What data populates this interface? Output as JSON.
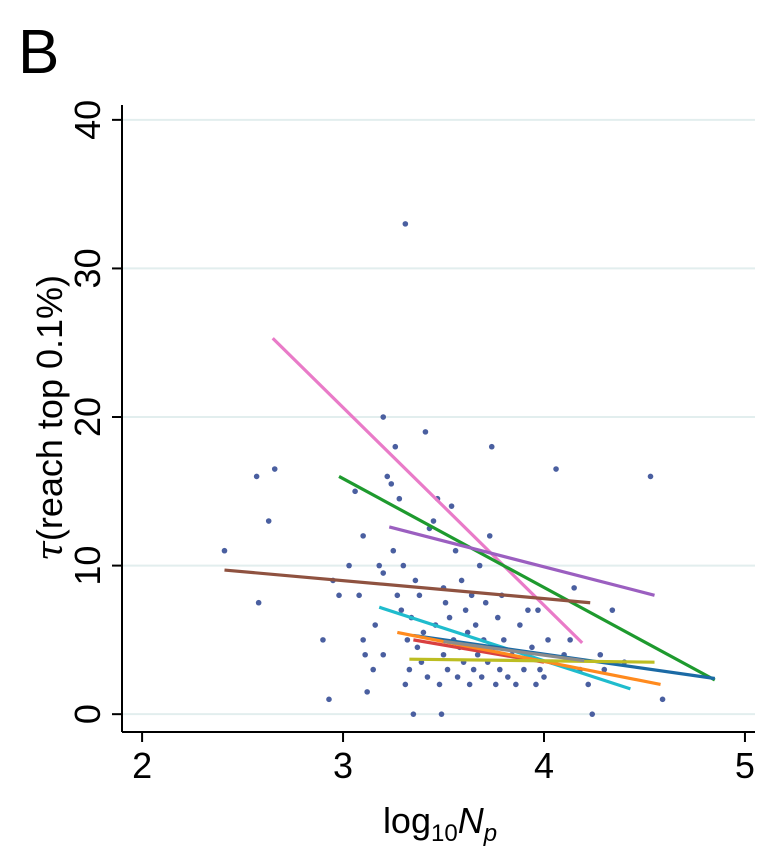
{
  "panel_label": "B",
  "chart_data": {
    "type": "scatter",
    "title": "",
    "xlabel": {
      "main": "log",
      "sub": "10",
      "var": "N",
      "var_sub": "p"
    },
    "ylabel": {
      "greek": "τ",
      "text": "(reach top 0.1%)"
    },
    "xlim": [
      1.9,
      5.05
    ],
    "ylim": [
      -1.2,
      41
    ],
    "xticks": [
      2,
      3,
      4,
      5
    ],
    "yticks": [
      0,
      10,
      20,
      30,
      40
    ],
    "grid": "horizontal",
    "colors": {
      "points": "#4a5fa0",
      "grid": "#e2eeee",
      "axis": "#000000"
    },
    "points": [
      [
        2.41,
        11
      ],
      [
        2.57,
        16
      ],
      [
        2.58,
        7.5
      ],
      [
        2.63,
        13
      ],
      [
        2.66,
        16.5
      ],
      [
        2.9,
        5
      ],
      [
        2.93,
        1
      ],
      [
        2.95,
        9
      ],
      [
        2.98,
        8
      ],
      [
        3.03,
        10
      ],
      [
        3.06,
        15
      ],
      [
        3.08,
        8
      ],
      [
        3.1,
        12
      ],
      [
        3.1,
        5
      ],
      [
        3.11,
        4
      ],
      [
        3.12,
        1.5
      ],
      [
        3.15,
        3
      ],
      [
        3.16,
        6
      ],
      [
        3.18,
        10
      ],
      [
        3.2,
        9.5
      ],
      [
        3.2,
        4
      ],
      [
        3.2,
        20
      ],
      [
        3.22,
        16
      ],
      [
        3.24,
        15.5
      ],
      [
        3.25,
        11
      ],
      [
        3.26,
        18
      ],
      [
        3.27,
        8
      ],
      [
        3.28,
        14.5
      ],
      [
        3.29,
        7
      ],
      [
        3.3,
        10
      ],
      [
        3.31,
        33
      ],
      [
        3.31,
        2
      ],
      [
        3.32,
        5
      ],
      [
        3.33,
        3
      ],
      [
        3.34,
        6.5
      ],
      [
        3.35,
        0
      ],
      [
        3.36,
        9
      ],
      [
        3.37,
        4.5
      ],
      [
        3.38,
        8
      ],
      [
        3.39,
        3.5
      ],
      [
        3.4,
        5.5
      ],
      [
        3.41,
        19
      ],
      [
        3.42,
        2.5
      ],
      [
        3.43,
        12.5
      ],
      [
        3.45,
        13
      ],
      [
        3.46,
        6
      ],
      [
        3.47,
        14.5
      ],
      [
        3.48,
        2
      ],
      [
        3.49,
        0
      ],
      [
        3.5,
        4
      ],
      [
        3.5,
        8.5
      ],
      [
        3.51,
        7.5
      ],
      [
        3.52,
        3
      ],
      [
        3.53,
        6.5
      ],
      [
        3.54,
        14
      ],
      [
        3.55,
        5
      ],
      [
        3.56,
        11
      ],
      [
        3.57,
        2.5
      ],
      [
        3.58,
        4.5
      ],
      [
        3.59,
        9
      ],
      [
        3.6,
        3.5
      ],
      [
        3.61,
        7
      ],
      [
        3.62,
        5.5
      ],
      [
        3.63,
        2
      ],
      [
        3.64,
        8
      ],
      [
        3.65,
        3
      ],
      [
        3.66,
        6
      ],
      [
        3.67,
        4
      ],
      [
        3.68,
        10
      ],
      [
        3.69,
        2.5
      ],
      [
        3.7,
        5
      ],
      [
        3.71,
        7.5
      ],
      [
        3.72,
        3.5
      ],
      [
        3.73,
        12
      ],
      [
        3.74,
        18
      ],
      [
        3.75,
        4.5
      ],
      [
        3.76,
        2
      ],
      [
        3.77,
        6.5
      ],
      [
        3.78,
        3
      ],
      [
        3.79,
        8
      ],
      [
        3.8,
        5
      ],
      [
        3.82,
        2.5
      ],
      [
        3.84,
        4
      ],
      [
        3.86,
        2
      ],
      [
        3.88,
        6
      ],
      [
        3.9,
        3
      ],
      [
        3.92,
        7
      ],
      [
        3.94,
        4.5
      ],
      [
        3.96,
        2
      ],
      [
        3.97,
        7
      ],
      [
        3.98,
        3
      ],
      [
        4.0,
        2.5
      ],
      [
        4.02,
        5
      ],
      [
        4.04,
        3.5
      ],
      [
        4.06,
        16.5
      ],
      [
        4.1,
        4
      ],
      [
        4.13,
        5
      ],
      [
        4.15,
        8.5
      ],
      [
        4.18,
        3
      ],
      [
        4.22,
        2
      ],
      [
        4.24,
        0
      ],
      [
        4.28,
        4
      ],
      [
        4.3,
        3
      ],
      [
        4.34,
        7
      ],
      [
        4.4,
        3.5
      ],
      [
        4.53,
        16
      ],
      [
        4.59,
        1
      ]
    ],
    "series": [
      {
        "name": "pink",
        "color": "#e97bc8",
        "x": [
          2.65,
          4.19
        ],
        "y": [
          25.3,
          4.8
        ]
      },
      {
        "name": "green",
        "color": "#1e9a2e",
        "x": [
          2.98,
          4.85
        ],
        "y": [
          16.0,
          2.3
        ]
      },
      {
        "name": "purple",
        "color": "#9b5fc0",
        "x": [
          3.23,
          4.55
        ],
        "y": [
          12.6,
          8.0
        ]
      },
      {
        "name": "brown",
        "color": "#8f5240",
        "x": [
          2.41,
          4.23
        ],
        "y": [
          9.7,
          7.5
        ]
      },
      {
        "name": "cyan",
        "color": "#1fbccd",
        "x": [
          3.18,
          4.43
        ],
        "y": [
          7.2,
          1.7
        ]
      },
      {
        "name": "blue",
        "color": "#1b6aa5",
        "x": [
          3.35,
          4.85
        ],
        "y": [
          5.3,
          2.4
        ]
      },
      {
        "name": "red",
        "color": "#d94040",
        "x": [
          3.35,
          4.0
        ],
        "y": [
          5.0,
          3.5
        ]
      },
      {
        "name": "orange",
        "color": "#ff8a1e",
        "x": [
          3.27,
          4.58
        ],
        "y": [
          5.5,
          2.0
        ]
      },
      {
        "name": "olive",
        "color": "#bcbd22",
        "x": [
          3.33,
          4.55
        ],
        "y": [
          3.7,
          3.5
        ]
      },
      {
        "name": "gray",
        "color": "#8c8c8c",
        "x": [
          3.5,
          4.2
        ],
        "y": [
          4.9,
          3.6
        ]
      }
    ]
  }
}
